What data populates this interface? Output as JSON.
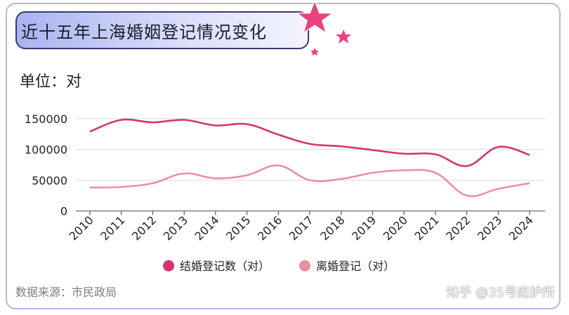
{
  "title": "近十五年上海婚姻登记情况变化",
  "unit_label": "单位：对",
  "source": "数据来源：市民政局",
  "watermark": "知乎 @35号庇护所",
  "colors": {
    "marriage": "#d6336c",
    "divorce": "#ec8f9e",
    "title_bg_start": "#a8b3f2",
    "star": "#e8437d"
  },
  "chart_data": {
    "type": "line",
    "title": "近十五年上海婚姻登记情况变化",
    "x": [
      "2010",
      "2011",
      "2012",
      "2013",
      "2014",
      "2015",
      "2016",
      "2017",
      "2018",
      "2019",
      "2020",
      "2021",
      "2022",
      "2023",
      "2024"
    ],
    "series": [
      {
        "name": "结婚登记数（对）",
        "values": [
          129000,
          148000,
          144000,
          148000,
          139000,
          141000,
          124000,
          109000,
          105000,
          99000,
          93000,
          92000,
          73000,
          104000,
          91000
        ]
      },
      {
        "name": "离婚登记（对）",
        "values": [
          38000,
          39000,
          45000,
          61000,
          53000,
          58000,
          74000,
          50000,
          52000,
          62000,
          66000,
          62000,
          25000,
          36000,
          45000
        ]
      }
    ],
    "yticks": [
      0,
      50000,
      100000,
      150000
    ],
    "ytick_labels": [
      "0",
      "50000",
      "100000",
      "150000"
    ],
    "ylim": [
      0,
      160000
    ],
    "grid": true,
    "legend_position": "bottom",
    "xlabel": "",
    "ylabel": ""
  }
}
